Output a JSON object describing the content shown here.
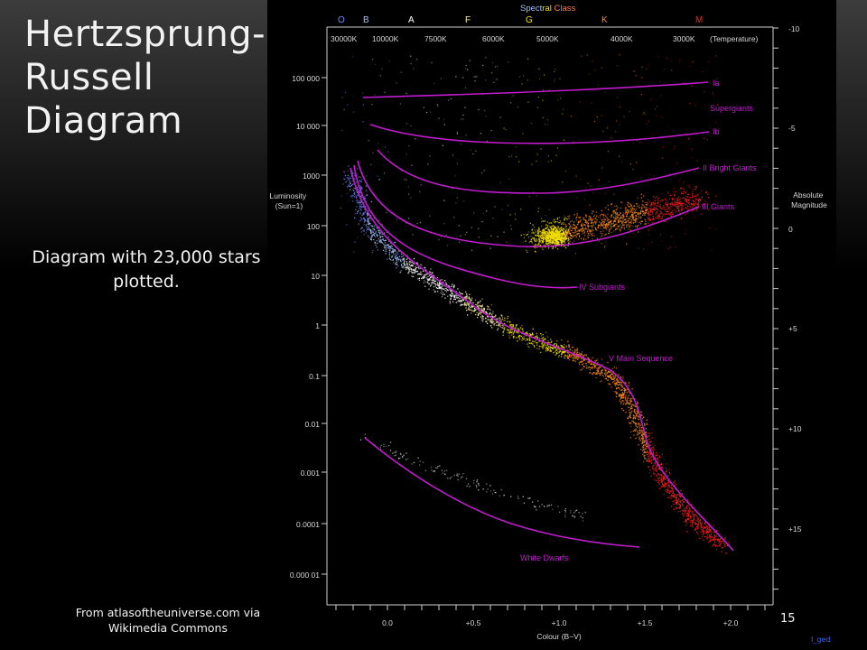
{
  "slide": {
    "title_lines": [
      "Hertzsprung-",
      "Russell",
      "Diagram"
    ],
    "subtitle": "Diagram with 23,000 stars plotted.",
    "credit_lines": [
      "From atlasoftheuniverse.com via",
      "Wikimedia Commons"
    ],
    "page_number": "15",
    "corner_mark": "I_ged"
  },
  "diagram": {
    "colors": {
      "curve": "#c11ccd",
      "axes": "#cfcfcf",
      "background": "#000000",
      "spectral_O": "#6f8cff",
      "spectral_B": "#9fc0ff",
      "spectral_A": "#ffffff",
      "spectral_F": "#f8f2a0",
      "spectral_G": "#f6e000",
      "spectral_K": "#ff8a1a",
      "spectral_M": "#ff2020"
    },
    "spectral_title": "Spectral Class",
    "spectral_classes": [
      "O",
      "B",
      "A",
      "F",
      "G",
      "K",
      "M"
    ],
    "temperatures": [
      "30000K",
      "10000K",
      "7500K",
      "6000K",
      "5000K",
      "4000K",
      "3000K"
    ],
    "temperature_label": "(Temperature)",
    "luminosity_label": [
      "Luminosity",
      "(Sun=1)"
    ],
    "luminosity_ticks": [
      "100 000",
      "10 000",
      "1000",
      "100",
      "10",
      "1",
      "0.1",
      "0.01",
      "0.001",
      "0.0001",
      "0.000 01"
    ],
    "abs_mag_label": [
      "Absolute",
      "Magnitude"
    ],
    "abs_mag_ticks": [
      "-10",
      "-5",
      "0",
      "+5",
      "+10",
      "+15"
    ],
    "colour_label": "Colour (B−V)",
    "colour_ticks": [
      "0.0",
      "+0.5",
      "+1.0",
      "+1.5",
      "+2.0"
    ],
    "curve_labels": {
      "ia": "Ia",
      "supergiants": "Supergiants",
      "ib": "Ib",
      "bright_giants": "II Bright Giants",
      "giants": "III   Giants",
      "subgiants": "IV  Subgiants",
      "main_sequence": "V  Main Sequence",
      "white_dwarfs": "White Dwarfs"
    }
  }
}
